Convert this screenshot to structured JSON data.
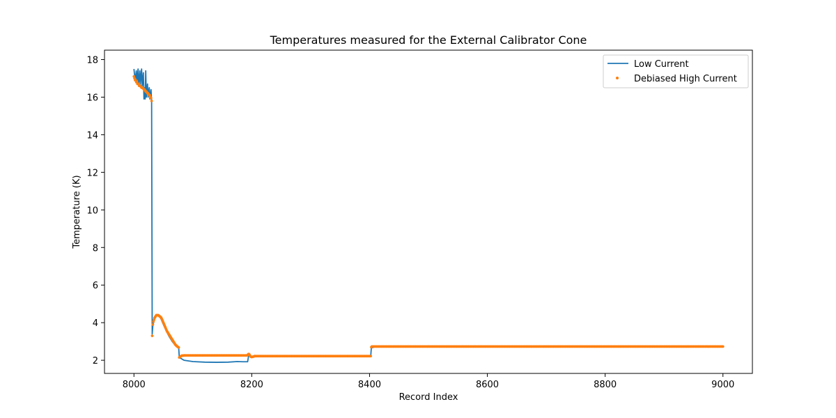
{
  "chart_data": {
    "type": "line",
    "title": "Temperatures measured for the External Calibrator Cone",
    "xlabel": "Record Index",
    "ylabel": "Temperature (K)",
    "xlim": [
      7950,
      9050
    ],
    "ylim": [
      1.3,
      18.5
    ],
    "xticks": [
      8000,
      8200,
      8400,
      8600,
      8800,
      9000
    ],
    "yticks": [
      2,
      4,
      6,
      8,
      10,
      12,
      14,
      16,
      18
    ],
    "grid": false,
    "legend_position": "top-right",
    "colors": {
      "low": "#1f77b4",
      "high": "#ff7f0e"
    },
    "series": [
      {
        "name": "Low Current",
        "style": "line",
        "points": [
          [
            8000,
            17.5
          ],
          [
            8002,
            16.9
          ],
          [
            8004,
            17.4
          ],
          [
            8005,
            16.8
          ],
          [
            8007,
            17.5
          ],
          [
            8008,
            16.6
          ],
          [
            8010,
            17.4
          ],
          [
            8011,
            16.7
          ],
          [
            8013,
            17.5
          ],
          [
            8014,
            16.6
          ],
          [
            8016,
            17.3
          ],
          [
            8017,
            15.9
          ],
          [
            8018,
            16.5
          ],
          [
            8019,
            15.9
          ],
          [
            8020,
            17.4
          ],
          [
            8021,
            16.0
          ],
          [
            8023,
            16.7
          ],
          [
            8024,
            16.0
          ],
          [
            8026,
            16.5
          ],
          [
            8027,
            15.9
          ],
          [
            8029,
            16.4
          ],
          [
            8030,
            15.8
          ],
          [
            8031,
            3.4
          ],
          [
            8032,
            3.8
          ],
          [
            8034,
            4.1
          ],
          [
            8037,
            4.35
          ],
          [
            8040,
            4.4
          ],
          [
            8043,
            4.35
          ],
          [
            8046,
            4.2
          ],
          [
            8050,
            3.9
          ],
          [
            8055,
            3.55
          ],
          [
            8060,
            3.25
          ],
          [
            8065,
            3.0
          ],
          [
            8070,
            2.8
          ],
          [
            8074,
            2.7
          ],
          [
            8076,
            2.65
          ],
          [
            8077,
            2.15
          ],
          [
            8085,
            2.0
          ],
          [
            8100,
            1.93
          ],
          [
            8120,
            1.9
          ],
          [
            8140,
            1.89
          ],
          [
            8160,
            1.9
          ],
          [
            8175,
            1.93
          ],
          [
            8185,
            1.92
          ],
          [
            8193,
            1.92
          ],
          [
            8195,
            2.3
          ],
          [
            8200,
            2.2
          ],
          [
            8205,
            2.2
          ],
          [
            8250,
            2.22
          ],
          [
            8300,
            2.22
          ],
          [
            8350,
            2.22
          ],
          [
            8400,
            2.22
          ],
          [
            8402,
            2.22
          ],
          [
            8403,
            2.65
          ],
          [
            8410,
            2.72
          ],
          [
            8500,
            2.73
          ],
          [
            8600,
            2.73
          ],
          [
            8700,
            2.73
          ],
          [
            8800,
            2.73
          ],
          [
            8900,
            2.73
          ],
          [
            9000,
            2.73
          ]
        ]
      },
      {
        "name": "Debiased High Current",
        "style": "scatter",
        "points": [
          [
            8000,
            17.1
          ],
          [
            8001,
            17.0
          ],
          [
            8002,
            16.9
          ],
          [
            8003,
            16.9
          ],
          [
            8004,
            16.8
          ],
          [
            8005,
            16.8
          ],
          [
            8006,
            16.7
          ],
          [
            8007,
            16.7
          ],
          [
            8008,
            16.7
          ],
          [
            8009,
            16.6
          ],
          [
            8010,
            16.6
          ],
          [
            8011,
            16.6
          ],
          [
            8012,
            16.55
          ],
          [
            8013,
            16.5
          ],
          [
            8014,
            16.5
          ],
          [
            8015,
            16.5
          ],
          [
            8016,
            16.45
          ],
          [
            8017,
            16.4
          ],
          [
            8018,
            16.4
          ],
          [
            8019,
            16.35
          ],
          [
            8020,
            16.3
          ],
          [
            8021,
            16.3
          ],
          [
            8022,
            16.25
          ],
          [
            8023,
            16.2
          ],
          [
            8024,
            16.2
          ],
          [
            8025,
            16.15
          ],
          [
            8026,
            16.1
          ],
          [
            8027,
            16.1
          ],
          [
            8028,
            16.0
          ],
          [
            8029,
            15.95
          ],
          [
            8030,
            15.8
          ],
          [
            8031,
            3.3
          ],
          [
            8032,
            3.9
          ],
          [
            8033,
            4.05
          ],
          [
            8034,
            4.15
          ],
          [
            8035,
            4.25
          ],
          [
            8036,
            4.3
          ],
          [
            8037,
            4.35
          ],
          [
            8038,
            4.4
          ],
          [
            8039,
            4.4
          ],
          [
            8040,
            4.4
          ],
          [
            8041,
            4.4
          ],
          [
            8042,
            4.38
          ],
          [
            8043,
            4.35
          ],
          [
            8044,
            4.33
          ],
          [
            8045,
            4.3
          ],
          [
            8046,
            4.28
          ],
          [
            8047,
            4.22
          ],
          [
            8048,
            4.15
          ],
          [
            8049,
            4.08
          ],
          [
            8050,
            4.0
          ],
          [
            8051,
            3.93
          ],
          [
            8052,
            3.85
          ],
          [
            8053,
            3.78
          ],
          [
            8054,
            3.7
          ],
          [
            8055,
            3.62
          ],
          [
            8056,
            3.55
          ],
          [
            8057,
            3.5
          ],
          [
            8058,
            3.45
          ],
          [
            8059,
            3.4
          ],
          [
            8060,
            3.35
          ],
          [
            8061,
            3.3
          ],
          [
            8062,
            3.25
          ],
          [
            8063,
            3.2
          ],
          [
            8064,
            3.15
          ],
          [
            8065,
            3.1
          ],
          [
            8066,
            3.05
          ],
          [
            8067,
            3.0
          ],
          [
            8068,
            2.95
          ],
          [
            8069,
            2.9
          ],
          [
            8070,
            2.85
          ],
          [
            8071,
            2.8
          ],
          [
            8072,
            2.78
          ],
          [
            8073,
            2.75
          ],
          [
            8074,
            2.72
          ],
          [
            8075,
            2.7
          ],
          [
            8076,
            2.68
          ],
          [
            8077,
            2.15
          ],
          [
            8078,
            2.17
          ],
          [
            8079,
            2.2
          ],
          [
            8080,
            2.22
          ],
          [
            8081,
            2.24
          ],
          [
            8082,
            2.25
          ],
          [
            8083,
            2.25
          ],
          [
            8084,
            2.25
          ],
          [
            8085,
            2.26
          ]
        ],
        "segments": [
          {
            "x_start": 8086,
            "x_end": 8192,
            "step": 2,
            "y": 2.26
          },
          {
            "x_start": 8206,
            "x_end": 8402,
            "step": 2,
            "y": 2.22
          },
          {
            "x_start": 8404,
            "x_end": 9000,
            "step": 2,
            "y": 2.73
          }
        ],
        "extra_points": [
          [
            8193,
            2.28
          ],
          [
            8194,
            2.32
          ],
          [
            8195,
            2.33
          ],
          [
            8196,
            2.3
          ],
          [
            8197,
            2.25
          ],
          [
            8198,
            2.2
          ],
          [
            8199,
            2.18
          ],
          [
            8200,
            2.17
          ],
          [
            8201,
            2.18
          ],
          [
            8202,
            2.19
          ],
          [
            8203,
            2.2
          ],
          [
            8204,
            2.21
          ],
          [
            8205,
            2.22
          ],
          [
            8403,
            2.7
          ]
        ]
      }
    ]
  }
}
